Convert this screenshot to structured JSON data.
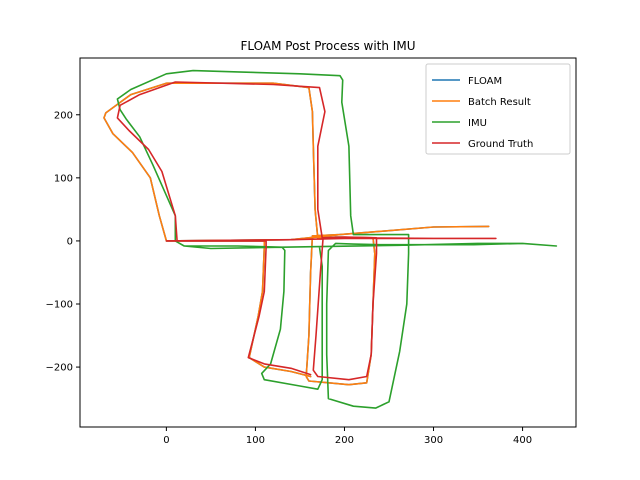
{
  "chart_data": {
    "type": "line",
    "title": "FLOAM Post Process with IMU",
    "xlabel": "",
    "ylabel": "",
    "xlim": [
      -97,
      460
    ],
    "ylim": [
      -295,
      290
    ],
    "xticks": [
      0,
      100,
      200,
      300,
      400
    ],
    "yticks": [
      -200,
      -100,
      0,
      100,
      200
    ],
    "grid": false,
    "legend_position": "top-right",
    "series": [
      {
        "name": "FLOAM",
        "color": "#1f77b4",
        "points": [
          [
            0,
            0
          ],
          [
            140,
            2
          ],
          [
            195,
            10
          ],
          [
            300,
            22
          ],
          [
            362,
            23
          ],
          [
            300,
            22
          ],
          [
            195,
            10
          ],
          [
            164,
            8
          ],
          [
            162,
            -50
          ],
          [
            160,
            -150
          ],
          [
            157,
            -215
          ],
          [
            160,
            -222
          ],
          [
            205,
            -228
          ],
          [
            225,
            -225
          ],
          [
            230,
            -180
          ],
          [
            232,
            -100
          ],
          [
            234,
            -20
          ],
          [
            232,
            5
          ],
          [
            190,
            6
          ],
          [
            170,
            4
          ],
          [
            167,
            50
          ],
          [
            165,
            150
          ],
          [
            164,
            205
          ],
          [
            160,
            243
          ],
          [
            120,
            250
          ],
          [
            0,
            250
          ],
          [
            -40,
            232
          ],
          [
            -68,
            203
          ],
          [
            -70,
            195
          ],
          [
            -60,
            170
          ],
          [
            -38,
            140
          ],
          [
            -18,
            100
          ],
          [
            -8,
            40
          ],
          [
            0,
            0
          ],
          [
            20,
            0
          ],
          [
            110,
            0
          ],
          [
            110,
            -10
          ],
          [
            108,
            -80
          ],
          [
            103,
            -120
          ],
          [
            93,
            -185
          ],
          [
            110,
            -200
          ],
          [
            140,
            -207
          ],
          [
            162,
            -215
          ]
        ]
      },
      {
        "name": "Batch Result",
        "color": "#ff7f0e",
        "points": [
          [
            0,
            0
          ],
          [
            140,
            2
          ],
          [
            195,
            10
          ],
          [
            300,
            22
          ],
          [
            362,
            23
          ],
          [
            300,
            22
          ],
          [
            195,
            10
          ],
          [
            164,
            8
          ],
          [
            162,
            -50
          ],
          [
            160,
            -150
          ],
          [
            157,
            -215
          ],
          [
            160,
            -222
          ],
          [
            205,
            -228
          ],
          [
            225,
            -225
          ],
          [
            230,
            -180
          ],
          [
            232,
            -100
          ],
          [
            234,
            -20
          ],
          [
            232,
            5
          ],
          [
            190,
            6
          ],
          [
            170,
            4
          ],
          [
            167,
            50
          ],
          [
            165,
            150
          ],
          [
            164,
            205
          ],
          [
            160,
            243
          ],
          [
            120,
            250
          ],
          [
            0,
            250
          ],
          [
            -40,
            232
          ],
          [
            -68,
            203
          ],
          [
            -70,
            195
          ],
          [
            -60,
            170
          ],
          [
            -38,
            140
          ],
          [
            -18,
            100
          ],
          [
            -8,
            40
          ],
          [
            0,
            0
          ],
          [
            20,
            0
          ],
          [
            110,
            0
          ],
          [
            110,
            -10
          ],
          [
            108,
            -80
          ],
          [
            103,
            -120
          ],
          [
            93,
            -185
          ],
          [
            110,
            -200
          ],
          [
            140,
            -207
          ],
          [
            162,
            -215
          ]
        ]
      },
      {
        "name": "IMU",
        "color": "#2ca02c",
        "points": [
          [
            20,
            -8
          ],
          [
            50,
            -12
          ],
          [
            130,
            -10
          ],
          [
            260,
            -7
          ],
          [
            350,
            -4
          ],
          [
            400,
            -4
          ],
          [
            438,
            -8
          ],
          [
            400,
            -4
          ],
          [
            345,
            -6
          ],
          [
            240,
            -6
          ],
          [
            210,
            -5
          ],
          [
            190,
            -4
          ],
          [
            182,
            -15
          ],
          [
            180,
            -100
          ],
          [
            180,
            -180
          ],
          [
            182,
            -250
          ],
          [
            210,
            -262
          ],
          [
            235,
            -265
          ],
          [
            250,
            -255
          ],
          [
            262,
            -175
          ],
          [
            270,
            -100
          ],
          [
            272,
            -20
          ],
          [
            272,
            10
          ],
          [
            230,
            10
          ],
          [
            210,
            10
          ],
          [
            207,
            40
          ],
          [
            205,
            150
          ],
          [
            197,
            220
          ],
          [
            198,
            255
          ],
          [
            195,
            262
          ],
          [
            150,
            265
          ],
          [
            80,
            268
          ],
          [
            30,
            270
          ],
          [
            0,
            265
          ],
          [
            -40,
            240
          ],
          [
            -55,
            225
          ],
          [
            -52,
            208
          ],
          [
            -45,
            193
          ],
          [
            -30,
            165
          ],
          [
            -15,
            120
          ],
          [
            10,
            40
          ],
          [
            10,
            0
          ],
          [
            20,
            -8
          ],
          [
            80,
            -8
          ],
          [
            130,
            -10
          ],
          [
            133,
            -15
          ],
          [
            132,
            -80
          ],
          [
            128,
            -140
          ],
          [
            117,
            -195
          ],
          [
            107,
            -210
          ],
          [
            110,
            -220
          ],
          [
            150,
            -230
          ],
          [
            170,
            -235
          ],
          [
            175,
            -220
          ],
          [
            175,
            -40
          ],
          [
            172,
            -10
          ]
        ]
      },
      {
        "name": "Ground Truth",
        "color": "#d62728",
        "points": [
          [
            0,
            0
          ],
          [
            140,
            2
          ],
          [
            200,
            4
          ],
          [
            300,
            4
          ],
          [
            370,
            4
          ],
          [
            300,
            4
          ],
          [
            210,
            5
          ],
          [
            176,
            5
          ],
          [
            173,
            -50
          ],
          [
            168,
            -150
          ],
          [
            165,
            -205
          ],
          [
            170,
            -215
          ],
          [
            205,
            -220
          ],
          [
            225,
            -215
          ],
          [
            230,
            -180
          ],
          [
            232,
            -100
          ],
          [
            236,
            -20
          ],
          [
            236,
            5
          ],
          [
            200,
            6
          ],
          [
            175,
            5
          ],
          [
            170,
            50
          ],
          [
            170,
            150
          ],
          [
            178,
            205
          ],
          [
            172,
            243
          ],
          [
            120,
            248
          ],
          [
            10,
            252
          ],
          [
            -30,
            232
          ],
          [
            -52,
            215
          ],
          [
            -55,
            195
          ],
          [
            -42,
            175
          ],
          [
            -20,
            145
          ],
          [
            -5,
            110
          ],
          [
            10,
            40
          ],
          [
            12,
            0
          ],
          [
            40,
            0
          ],
          [
            112,
            0
          ],
          [
            112,
            -10
          ],
          [
            110,
            -80
          ],
          [
            104,
            -120
          ],
          [
            92,
            -185
          ],
          [
            110,
            -195
          ],
          [
            140,
            -202
          ],
          [
            162,
            -212
          ]
        ]
      }
    ]
  }
}
